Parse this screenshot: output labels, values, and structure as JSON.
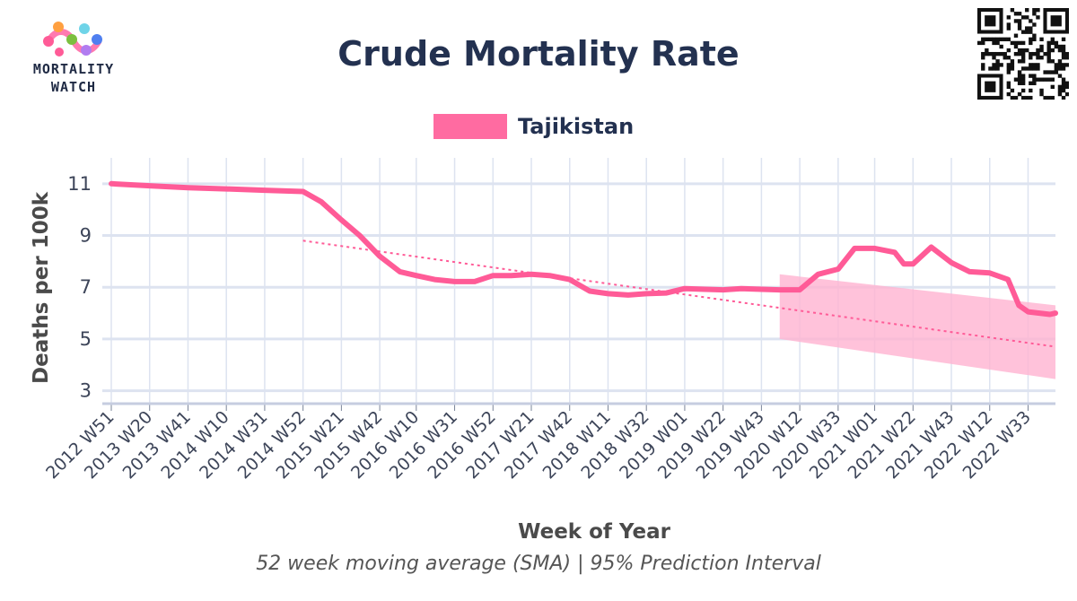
{
  "header": {
    "title": "Crude Mortality Rate",
    "logo_line1": "MORTALITY",
    "logo_line2": "WATCH",
    "subtitle": "52 week moving average (SMA) | 95% Prediction Interval"
  },
  "colors": {
    "series": "#ff5b97",
    "band": "#ffb3d1",
    "grid": "#dde3f0",
    "text": "#233150"
  },
  "chart_data": {
    "type": "line",
    "title": "Crude Mortality Rate",
    "xlabel": "Week of Year",
    "ylabel": "Deaths per 100k",
    "ylim": [
      2.5,
      12.0
    ],
    "yticks": [
      3,
      5,
      7,
      9,
      11
    ],
    "xticks": [
      "2012 W51",
      "2013 W20",
      "2013 W41",
      "2014 W10",
      "2014 W31",
      "2014 W52",
      "2015 W21",
      "2015 W42",
      "2016 W10",
      "2016 W31",
      "2016 W52",
      "2017 W21",
      "2017 W42",
      "2018 W11",
      "2018 W32",
      "2019 W01",
      "2019 W22",
      "2019 W43",
      "2020 W12",
      "2020 W33",
      "2021 W01",
      "2021 W22",
      "2021 W43",
      "2022 W12",
      "2022 W33"
    ],
    "grid": true,
    "legend_position": "top-center",
    "series": [
      {
        "name": "Tajikistan",
        "points": [
          [
            "2012 W51",
            11.0
          ],
          [
            "2013 W20",
            10.92
          ],
          [
            "2013 W41",
            10.85
          ],
          [
            "2014 W10",
            10.8
          ],
          [
            "2014 W31",
            10.75
          ],
          [
            "2014 W52",
            10.7
          ],
          [
            "2015 W10",
            10.3
          ],
          [
            "2015 W21",
            9.6
          ],
          [
            "2015 W31",
            9.0
          ],
          [
            "2015 W42",
            8.2
          ],
          [
            "2016 W01",
            7.6
          ],
          [
            "2016 W10",
            7.45
          ],
          [
            "2016 W20",
            7.3
          ],
          [
            "2016 W31",
            7.22
          ],
          [
            "2016 W42",
            7.22
          ],
          [
            "2016 W52",
            7.45
          ],
          [
            "2017 W10",
            7.45
          ],
          [
            "2017 W21",
            7.5
          ],
          [
            "2017 W31",
            7.45
          ],
          [
            "2017 W42",
            7.3
          ],
          [
            "2018 W01",
            6.85
          ],
          [
            "2018 W11",
            6.75
          ],
          [
            "2018 W22",
            6.7
          ],
          [
            "2018 W32",
            6.75
          ],
          [
            "2018 W43",
            6.78
          ],
          [
            "2019 W01",
            6.95
          ],
          [
            "2019 W12",
            6.92
          ],
          [
            "2019 W22",
            6.9
          ],
          [
            "2019 W32",
            6.95
          ],
          [
            "2019 W43",
            6.92
          ],
          [
            "2020 W01",
            6.9
          ],
          [
            "2020 W12",
            6.9
          ],
          [
            "2020 W22",
            7.5
          ],
          [
            "2020 W33",
            7.7
          ],
          [
            "2020 W42",
            8.5
          ],
          [
            "2021 W01",
            8.5
          ],
          [
            "2021 W12",
            8.35
          ],
          [
            "2021 W17",
            7.9
          ],
          [
            "2021 W22",
            7.9
          ],
          [
            "2021 W32",
            8.55
          ],
          [
            "2021 W43",
            7.95
          ],
          [
            "2022 W01",
            7.6
          ],
          [
            "2022 W12",
            7.55
          ],
          [
            "2022 W22",
            7.3
          ],
          [
            "2022 W28",
            6.3
          ],
          [
            "2022 W33",
            6.05
          ],
          [
            "2022 W45",
            5.95
          ],
          [
            "2022 W48",
            6.0
          ]
        ]
      }
    ],
    "trend": {
      "from": [
        "2014 W52",
        8.8
      ],
      "to": [
        "2022 W48",
        4.7
      ]
    },
    "prediction_interval": {
      "start": "2020 W01",
      "end": "2022 W48",
      "upper": [
        7.5,
        6.3
      ],
      "lower": [
        5.0,
        3.45
      ]
    }
  }
}
